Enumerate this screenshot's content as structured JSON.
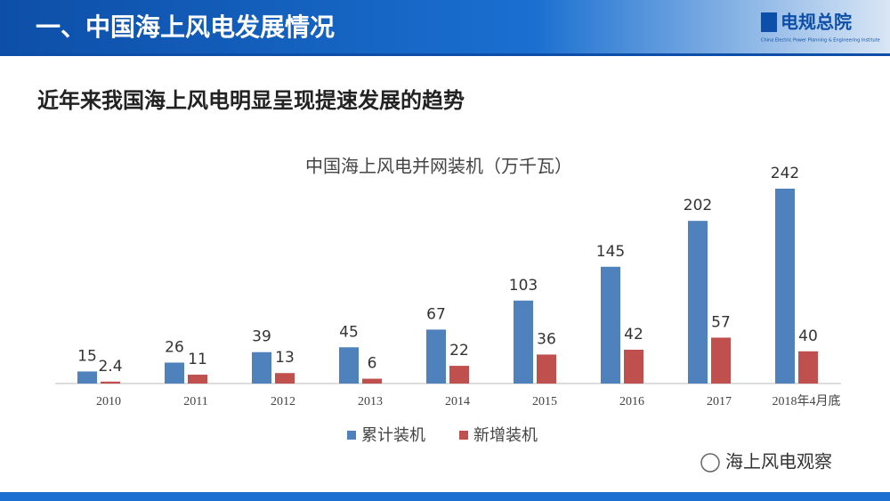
{
  "header": {
    "title": "一、中国海上风电发展情况",
    "logo": "电规总院",
    "logo_subtitle": "China Electric Power Planning & Engineering Institute"
  },
  "subtitle": "近年来我国海上风电明显呈现提速发展的趋势",
  "watermark": "海上风电观察",
  "chart_data": {
    "type": "bar",
    "title": "中国海上风电并网装机（万千瓦）",
    "categories": [
      "2010",
      "2011",
      "2012",
      "2013",
      "2014",
      "2015",
      "2016",
      "2017",
      "2018年4月底"
    ],
    "series": [
      {
        "name": "累计装机",
        "color": "#4f81bd",
        "values": [
          15,
          26,
          39,
          45,
          67,
          103,
          145,
          202,
          242
        ]
      },
      {
        "name": "新增装机",
        "color": "#c0504d",
        "values": [
          2.4,
          11,
          13,
          6,
          22,
          36,
          42,
          57,
          40
        ]
      }
    ],
    "legend": "bottom"
  }
}
